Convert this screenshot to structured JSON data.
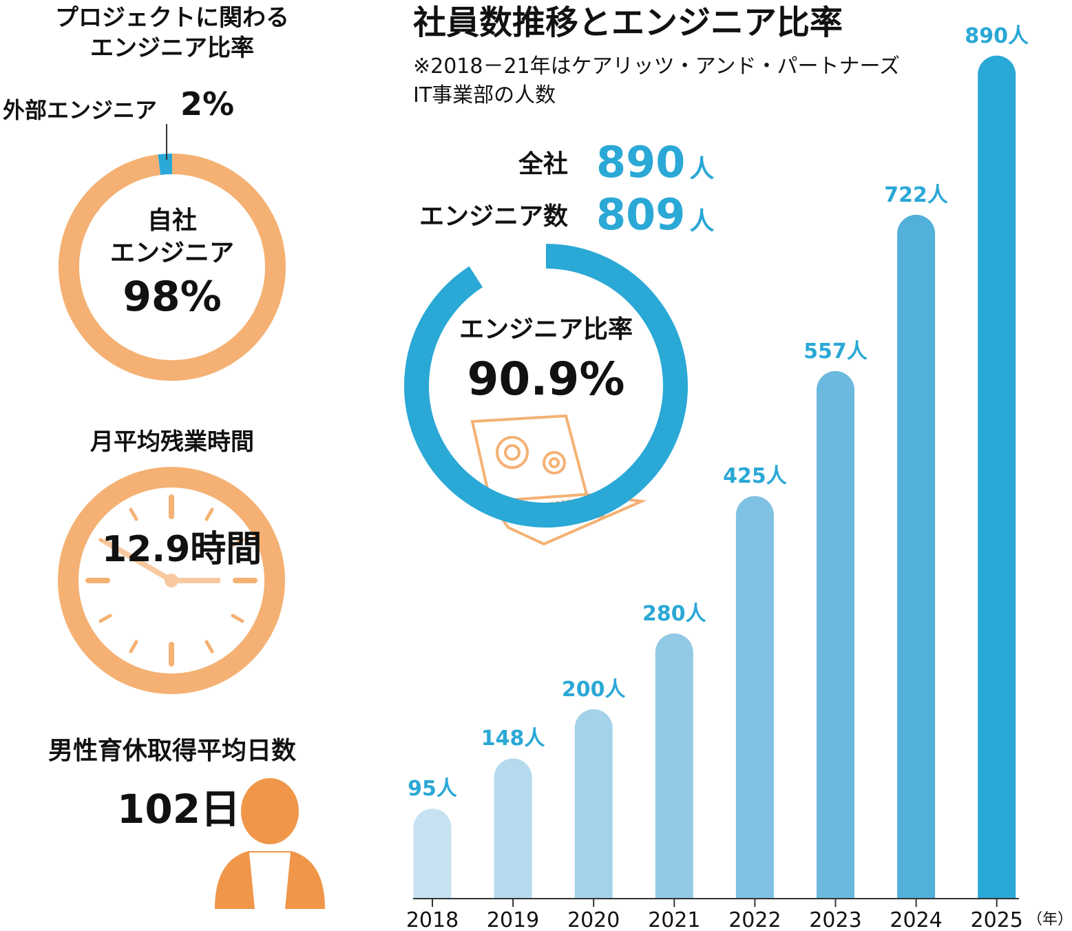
{
  "chart_data": [
    {
      "type": "donut",
      "title": "プロジェクトに関わる\nエンジニア比率",
      "categories": [
        "外部エンジニア",
        "自社\nエンジニア"
      ],
      "values": [
        2,
        98
      ],
      "value_labels": [
        "2%",
        "98%"
      ],
      "colors": [
        "#2aa8d6",
        "#f4b173"
      ]
    },
    {
      "type": "gauge",
      "title": "エンジニア比率",
      "value": 90.9,
      "value_label": "90.9%",
      "ylim": [
        0,
        100
      ],
      "color": "#2aa8d6"
    },
    {
      "type": "bar",
      "title": "社員数推移とエンジニア比率",
      "subtitle": "※2018－21年はケアリッツ・アンド・パートナーズ\nIT事業部の人数",
      "categories": [
        "2018",
        "2019",
        "2020",
        "2021",
        "2022",
        "2023",
        "2024",
        "2025"
      ],
      "values": [
        95,
        148,
        200,
        280,
        425,
        557,
        722,
        890
      ],
      "value_labels": [
        "95人",
        "148人",
        "200人",
        "280人",
        "425人",
        "557人",
        "722人",
        "890人"
      ],
      "colors": [
        "#c6e2f1",
        "#b5daee",
        "#a4d2ea",
        "#92cae6",
        "#7fc1e2",
        "#6bb9de",
        "#52b0da",
        "#2aa8d6"
      ],
      "ylim": [
        0,
        900
      ],
      "x_unit": "（年）"
    }
  ],
  "stats": [
    {
      "label": "全社",
      "value": 890,
      "unit": "人"
    },
    {
      "label": "エンジニア数",
      "value": 809,
      "unit": "人"
    }
  ],
  "overtime": {
    "title": "月平均残業時間",
    "value_label": "12.9時間"
  },
  "paternity_leave": {
    "title": "男性育休取得平均日数",
    "value_label": "102日"
  }
}
